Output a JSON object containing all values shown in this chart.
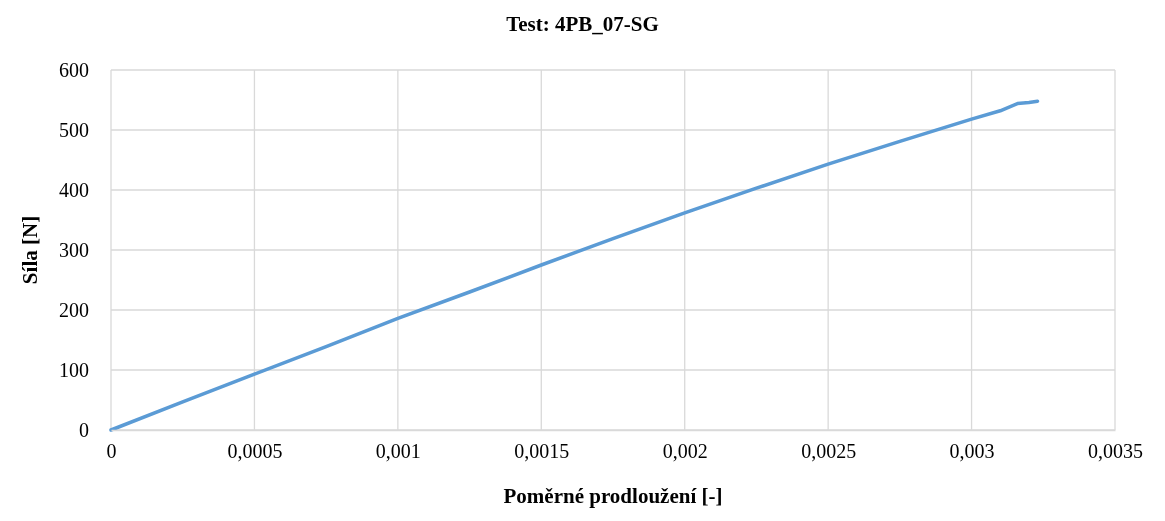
{
  "chart_data": {
    "type": "line",
    "title": "Test: 4PB_07-SG",
    "xlabel": "Poměrné prodloužení [-]",
    "ylabel": "Síla [N]",
    "x": [
      0,
      0.00025,
      0.0005,
      0.00075,
      0.001,
      0.00125,
      0.0015,
      0.00175,
      0.002,
      0.00225,
      0.0025,
      0.00275,
      0.003,
      0.0031,
      0.00316,
      0.0032,
      0.00323
    ],
    "series": [
      {
        "color": "#5b9bd5",
        "values": [
          0,
          47,
          93,
          139,
          186,
          230,
          275,
          319,
          362,
          403,
          443,
          481,
          518,
          532,
          544,
          546,
          548
        ]
      }
    ],
    "xlim": [
      0,
      0.0035
    ],
    "xticks": [
      0,
      {
        "value": 0.0005,
        "label": "0,0005"
      },
      {
        "value": 0.001,
        "label": "0,001"
      },
      {
        "value": 0.0015,
        "label": "0,0015"
      },
      {
        "value": 0.002,
        "label": "0,002"
      },
      {
        "value": 0.0025,
        "label": "0,0025"
      },
      {
        "value": 0.003,
        "label": "0,003"
      },
      {
        "value": 0.0035,
        "label": "0,0035"
      }
    ],
    "ylim": [
      0,
      600
    ],
    "yticks": [
      0,
      100,
      200,
      300,
      400,
      500,
      600
    ],
    "grid": true,
    "marker": "none",
    "line_style": "solid"
  }
}
